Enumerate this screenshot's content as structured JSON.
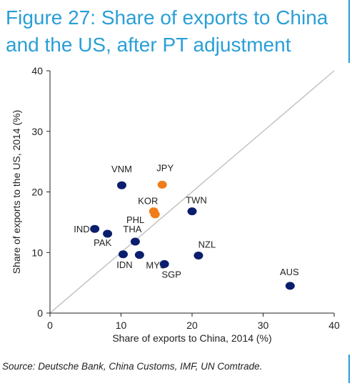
{
  "title": "Figure 27: Share of exports to China and the US, after PT adjustment",
  "source": "Source: Deutsche Bank, China Customs, IMF, UN Comtrade.",
  "chart_data": {
    "type": "scatter",
    "title": "Figure 27: Share of exports to China and the US, after PT adjustment",
    "xlabel": "Share of exports to China, 2014 (%)",
    "ylabel": "Share of exports to the US, 2014 (%)",
    "xlim": [
      0,
      40
    ],
    "ylim": [
      0,
      40
    ],
    "xticks": [
      0,
      10,
      20,
      30,
      40
    ],
    "yticks": [
      0,
      10,
      20,
      30,
      40
    ],
    "grid": false,
    "reference_line": "45-degree diagonal",
    "colors": {
      "default": "#0b1e6e",
      "highlight": "#f07d1a",
      "diagonal": "#bfbfbf",
      "accent": "#2a9fd6"
    },
    "points": [
      {
        "label": "VNM",
        "x": 10.1,
        "y": 21.1,
        "highlight": false
      },
      {
        "label": "JPY",
        "x": 15.8,
        "y": 21.2,
        "highlight": true
      },
      {
        "label": "KOR",
        "x": 14.6,
        "y": 16.8,
        "highlight": true
      },
      {
        "label": "PHL",
        "x": 14.8,
        "y": 16.3,
        "highlight": true
      },
      {
        "label": "TWN",
        "x": 20.0,
        "y": 16.8,
        "highlight": false
      },
      {
        "label": "IND",
        "x": 6.3,
        "y": 13.9,
        "highlight": false
      },
      {
        "label": "PAK",
        "x": 8.1,
        "y": 13.1,
        "highlight": false
      },
      {
        "label": "THA",
        "x": 12.0,
        "y": 11.8,
        "highlight": false
      },
      {
        "label": "IDN",
        "x": 10.3,
        "y": 9.7,
        "highlight": false
      },
      {
        "label": "MYS",
        "x": 12.6,
        "y": 9.6,
        "highlight": false
      },
      {
        "label": "SGP",
        "x": 16.1,
        "y": 8.1,
        "highlight": false
      },
      {
        "label": "NZL",
        "x": 20.9,
        "y": 9.5,
        "highlight": false
      },
      {
        "label": "AUS",
        "x": 33.8,
        "y": 4.5,
        "highlight": false
      }
    ]
  }
}
